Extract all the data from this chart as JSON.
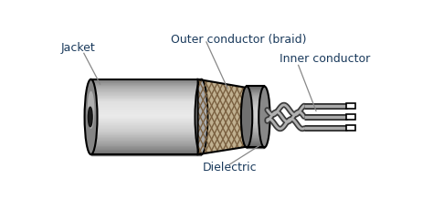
{
  "bg_color": "#ffffff",
  "text_color": "#1a3a5c",
  "label_jacket": "Jacket",
  "label_outer": "Outer conductor (braid)",
  "label_inner": "Inner conductor",
  "label_dielectric": "Dielectric",
  "font_size": 9,
  "fig_width": 4.74,
  "fig_height": 2.42,
  "dpi": 100,
  "black": "#000000",
  "white": "#ffffff"
}
